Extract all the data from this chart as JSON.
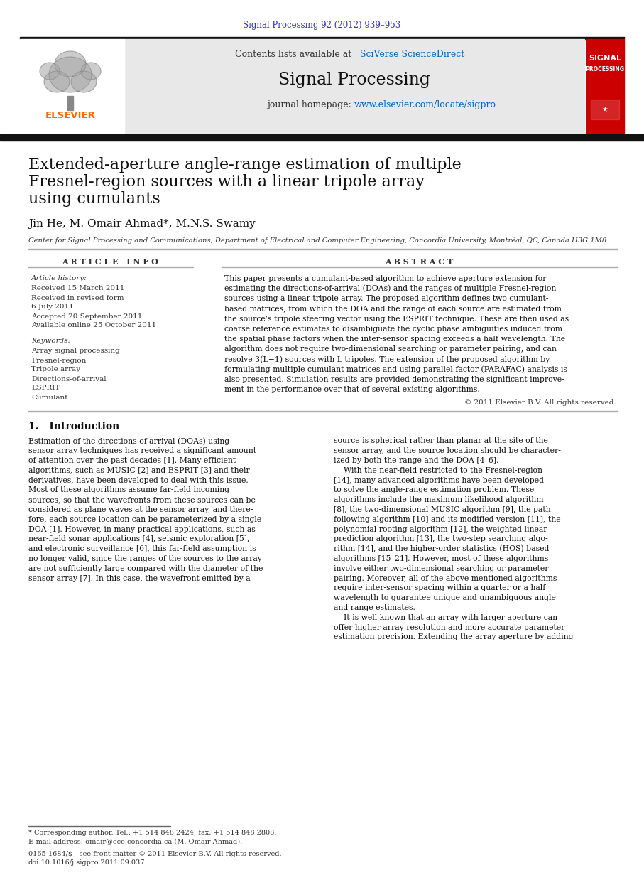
{
  "page_width": 9.07,
  "page_height": 12.38,
  "bg_color": "#ffffff",
  "header_journal_ref": "Signal Processing 92 (2012) 939–953",
  "header_ref_color": "#3333cc",
  "journal_banner_bg": "#e8e8e8",
  "journal_banner_text": "Contents lists available at ",
  "journal_banner_link": "SciVerse ScienceDirect",
  "journal_banner_link_color": "#0066cc",
  "journal_title": "Signal Processing",
  "journal_homepage_text": "journal homepage: ",
  "journal_homepage_url": "www.elsevier.com/locate/sigpro",
  "journal_homepage_url_color": "#0066cc",
  "elsevier_text": "ELSEVIER",
  "elsevier_color": "#FF6600",
  "signal_processing_cover_bg": "#cc0000",
  "signal_processing_cover_text1": "SIGNAL",
  "signal_processing_cover_text2": "PROCESSING",
  "paper_title_line1": "Extended-aperture angle-range estimation of multiple",
  "paper_title_line2": "Fresnel-region sources with a linear tripole array",
  "paper_title_line3": "using cumulants",
  "authors": "Jin He, M. Omair Ahmad*, M.N.S. Swamy",
  "affiliation": "Center for Signal Processing and Communications, Department of Electrical and Computer Engineering, Concordia University, Montréal, QC, Canada H3G 1M8",
  "article_info_title": "A R T I C L E   I N F O",
  "abstract_title": "A B S T R A C T",
  "article_history_label": "Article history:",
  "received_1": "Received 15 March 2011",
  "received_revised": "Received in revised form",
  "revised_date": "6 July 2011",
  "accepted": "Accepted 20 September 2011",
  "available": "Available online 25 October 2011",
  "keywords_label": "Keywords:",
  "kw1": "Array signal processing",
  "kw2": "Fresnel-region",
  "kw3": "Tripole array",
  "kw4": "Directions-of-arrival",
  "kw5": "ESPRIT",
  "kw6": "Cumulant",
  "abstract_text": "This paper presents a cumulant-based algorithm to achieve aperture extension for\nestimating the directions-of-arrival (DOAs) and the ranges of multiple Fresnel-region\nsources using a linear tripole array. The proposed algorithm defines two cumulant-\nbased matrices, from which the DOA and the range of each source are estimated from\nthe source’s tripole steering vector using the ESPRIT technique. These are then used as\ncoarse reference estimates to disambiguate the cyclic phase ambiguities induced from\nthe spatial phase factors when the inter-sensor spacing exceeds a half wavelength. The\nalgorithm does not require two-dimensional searching or parameter pairing, and can\nresolve 3(L−1) sources with L tripoles. The extension of the proposed algorithm by\nformulating multiple cumulant matrices and using parallel factor (PARAFAC) analysis is\nalso presented. Simulation results are provided demonstrating the significant improve-\nment in the performance over that of several existing algorithms.",
  "copyright_text": "© 2011 Elsevier B.V. All rights reserved.",
  "intro_title": "1.   Introduction",
  "intro_text_col1": "Estimation of the directions-of-arrival (DOAs) using\nsensor array techniques has received a significant amount\nof attention over the past decades [1]. Many efficient\nalgorithms, such as MUSIC [2] and ESPRIT [3] and their\nderivatives, have been developed to deal with this issue.\nMost of these algorithms assume far-field incoming\nsources, so that the wavefronts from these sources can be\nconsidered as plane waves at the sensor array, and there-\nfore, each source location can be parameterized by a single\nDOA [1]. However, in many practical applications, such as\nnear-field sonar applications [4], seismic exploration [5],\nand electronic surveillance [6], this far-field assumption is\nno longer valid, since the ranges of the sources to the array\nare not sufficiently large compared with the diameter of the\nsensor array [7]. In this case, the wavefront emitted by a",
  "intro_text_col2": "source is spherical rather than planar at the site of the\nsensor array, and the source location should be character-\nized by both the range and the DOA [4–6].\n    With the near-field restricted to the Fresnel-region\n[14], many advanced algorithms have been developed\nto solve the angle-range estimation problem. These\nalgorithms include the maximum likelihood algorithm\n[8], the two-dimensional MUSIC algorithm [9], the path\nfollowing algorithm [10] and its modified version [11], the\npolynomial rooting algorithm [12], the weighted linear\nprediction algorithm [13], the two-step searching algo-\nrithm [14], and the higher-order statistics (HOS) based\nalgorithms [15–21]. However, most of these algorithms\ninvolve either two-dimensional searching or parameter\npairing. Moreover, all of the above mentioned algorithms\nrequire inter-sensor spacing within a quarter or a half\nwavelength to guarantee unique and unambiguous angle\nand range estimates.\n    It is well known that an array with larger aperture can\noffer higher array resolution and more accurate parameter\nestimation precision. Extending the array aperture by adding",
  "footnote_star": "* Corresponding author. Tel.: +1 514 848 2424; fax: +1 514 848 2808.",
  "footnote_email": "E-mail address: omair@ece.concordia.ca (M. Omair Ahmad).",
  "footnote_issn": "0165-1684/$ - see front matter © 2011 Elsevier B.V. All rights reserved.",
  "footnote_doi": "doi:10.1016/j.sigpro.2011.09.037"
}
